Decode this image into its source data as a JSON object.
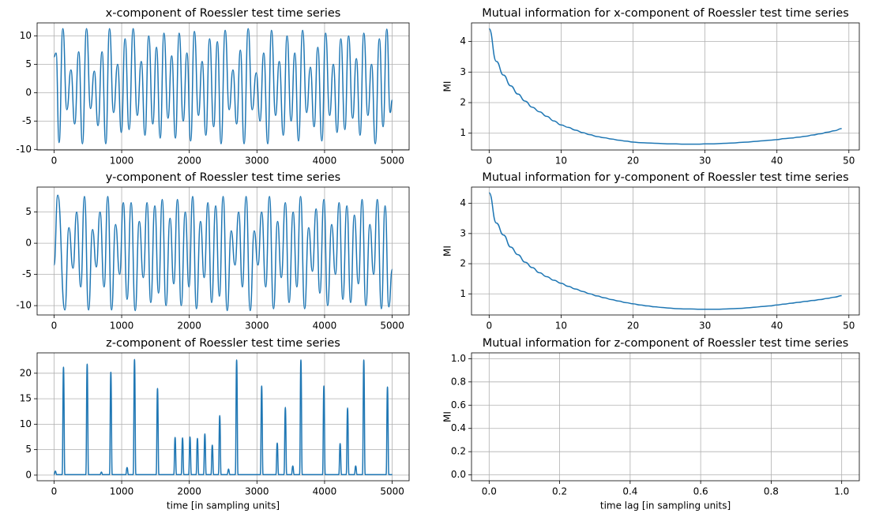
{
  "chart_data": [
    {
      "type": "line",
      "title": "x-component of Roessler test time series",
      "x": [
        0,
        30,
        75,
        130,
        190,
        250,
        305,
        365,
        420,
        480,
        540,
        595,
        650,
        710,
        765,
        820,
        880,
        940,
        995,
        1050,
        1110,
        1170,
        1230,
        1290,
        1345,
        1400,
        1460,
        1515,
        1570,
        1625,
        1685,
        1740,
        1795,
        1850,
        1910,
        1965,
        2020,
        2075,
        2135,
        2190,
        2245,
        2300,
        2360,
        2415,
        2470,
        2530,
        2590,
        2645,
        2700,
        2755,
        2810,
        2870,
        2930,
        2990,
        3045,
        3100,
        3160,
        3215,
        3275,
        3330,
        3390,
        3445,
        3505,
        3560,
        3615,
        3675,
        3735,
        3790,
        3845,
        3900,
        3960,
        4015,
        4075,
        4130,
        4185,
        4240,
        4300,
        4355,
        4415,
        4470,
        4525,
        4580,
        4640,
        4695,
        4750,
        4810,
        4865,
        4920,
        4970,
        5000
      ],
      "series": [
        {
          "color": "#1f77b4",
          "values": [
            6.3,
            7,
            -8.8,
            11.3,
            -3,
            4,
            -5.5,
            7.2,
            -9,
            11.3,
            -2.8,
            3.8,
            -5.8,
            7.2,
            -9,
            11.3,
            -3.5,
            5,
            -7,
            9.5,
            -6.5,
            11.3,
            -4,
            5.5,
            -7.5,
            10,
            -5.5,
            8,
            -8,
            10.5,
            -4.5,
            6.5,
            -8,
            10.5,
            -5,
            7,
            -8.5,
            10.8,
            -4,
            5.5,
            -7.5,
            9.5,
            -6,
            9,
            -9,
            11,
            -3,
            4,
            -5.5,
            7.5,
            -9,
            11.3,
            -3,
            3.5,
            -5,
            7,
            -9,
            11,
            -4,
            5.5,
            -7.5,
            10,
            -5,
            7,
            -8.5,
            11,
            -3.5,
            4.5,
            -6,
            8,
            -8.5,
            10.5,
            -4,
            5,
            -7,
            9.5,
            -6.5,
            10,
            -4.5,
            6,
            -7.5,
            10.5,
            -4,
            5,
            -9,
            9.5,
            -6,
            11.2,
            -3.5,
            -1.3
          ]
        }
      ],
      "xlim": [
        -250,
        5250
      ],
      "xticks": [
        0,
        1000,
        2000,
        3000,
        4000,
        5000
      ],
      "ylim": [
        -10.1,
        12.3
      ],
      "yticks": [
        -10,
        -5,
        0,
        5,
        10
      ],
      "grid": true
    },
    {
      "type": "line",
      "title": "Mutual information for x-component of Roessler test time series",
      "ylabel": "MI",
      "x": [
        0,
        1,
        2,
        3,
        4,
        5,
        6,
        7,
        8,
        9,
        10,
        11,
        12,
        13,
        14,
        15,
        16,
        17,
        18,
        19,
        20,
        21,
        22,
        23,
        24,
        25,
        26,
        27,
        28,
        29,
        30,
        31,
        32,
        33,
        34,
        35,
        36,
        37,
        38,
        39,
        40,
        41,
        42,
        43,
        44,
        45,
        46,
        47,
        48,
        49
      ],
      "series": [
        {
          "color": "#1f77b4",
          "values": [
            4.42,
            3.35,
            2.9,
            2.55,
            2.28,
            2.05,
            1.85,
            1.7,
            1.55,
            1.4,
            1.27,
            1.19,
            1.1,
            1.02,
            0.95,
            0.89,
            0.85,
            0.81,
            0.77,
            0.74,
            0.71,
            0.69,
            0.68,
            0.67,
            0.66,
            0.65,
            0.65,
            0.64,
            0.64,
            0.64,
            0.65,
            0.65,
            0.66,
            0.67,
            0.68,
            0.7,
            0.71,
            0.73,
            0.75,
            0.77,
            0.79,
            0.82,
            0.84,
            0.87,
            0.9,
            0.94,
            0.98,
            1.03,
            1.08,
            1.15
          ]
        }
      ],
      "xlim": [
        -2.45,
        51.45
      ],
      "xticks": [
        0,
        10,
        20,
        30,
        40,
        50
      ],
      "ylim": [
        0.45,
        4.61
      ],
      "yticks": [
        1,
        2,
        3,
        4
      ],
      "grid": true
    },
    {
      "type": "line",
      "title": "y-component of Roessler test time series",
      "x": [
        0,
        55,
        160,
        220,
        280,
        335,
        395,
        450,
        510,
        570,
        625,
        680,
        740,
        795,
        850,
        910,
        970,
        1025,
        1080,
        1140,
        1200,
        1260,
        1320,
        1375,
        1430,
        1490,
        1545,
        1600,
        1655,
        1715,
        1770,
        1825,
        1880,
        1940,
        1995,
        2050,
        2105,
        2165,
        2220,
        2275,
        2330,
        2390,
        2445,
        2500,
        2560,
        2620,
        2675,
        2730,
        2785,
        2840,
        2900,
        2960,
        3015,
        3070,
        3130,
        3185,
        3245,
        3305,
        3360,
        3420,
        3475,
        3535,
        3590,
        3645,
        3705,
        3765,
        3820,
        3875,
        3930,
        3990,
        4045,
        4105,
        4160,
        4215,
        4270,
        4330,
        4385,
        4440,
        4500,
        4555,
        4610,
        4670,
        4725,
        4780,
        4840,
        4895,
        4950,
        5000
      ],
      "series": [
        {
          "color": "#1f77b4",
          "values": [
            -3.5,
            7.7,
            -10.7,
            2.5,
            -4,
            5,
            -7,
            7.5,
            -10.7,
            2.2,
            -3.8,
            5,
            -7,
            7.5,
            -10.7,
            3,
            -5,
            6.5,
            -9,
            6.5,
            -10.8,
            3.5,
            -5.5,
            6.5,
            -9.5,
            6,
            -8,
            7,
            -10,
            4,
            -6.5,
            7,
            -10,
            5,
            -7,
            7.5,
            -10.5,
            3.5,
            -5.5,
            6.5,
            -9.5,
            6,
            -8.5,
            7.5,
            -10.8,
            2,
            -3.5,
            5,
            -7,
            7.5,
            -10.8,
            2,
            -3.5,
            5,
            -7,
            7.5,
            -10.5,
            3.5,
            -5.5,
            6.5,
            -9.5,
            5,
            -7,
            7.5,
            -10.5,
            2.5,
            -4.5,
            5.5,
            -8,
            7,
            -10,
            3,
            -5,
            6.5,
            -9,
            6,
            -9.5,
            4.5,
            -6.5,
            7,
            -10,
            3,
            -5,
            7,
            -10.5,
            6,
            -10.2,
            -4.2
          ]
        }
      ],
      "xlim": [
        -250,
        5250
      ],
      "xticks": [
        0,
        1000,
        2000,
        3000,
        4000,
        5000
      ],
      "ylim": [
        -11.5,
        9
      ],
      "yticks": [
        -10,
        -5,
        0,
        5
      ],
      "grid": true
    },
    {
      "type": "line",
      "title": "Mutual information for y-component of Roessler test time series",
      "ylabel": "MI",
      "x": [
        0,
        1,
        2,
        3,
        4,
        5,
        6,
        7,
        8,
        9,
        10,
        11,
        12,
        13,
        14,
        15,
        16,
        17,
        18,
        19,
        20,
        21,
        22,
        23,
        24,
        25,
        26,
        27,
        28,
        29,
        30,
        31,
        32,
        33,
        34,
        35,
        36,
        37,
        38,
        39,
        40,
        41,
        42,
        43,
        44,
        45,
        46,
        47,
        48,
        49
      ],
      "series": [
        {
          "color": "#1f77b4",
          "values": [
            4.35,
            3.35,
            2.95,
            2.55,
            2.3,
            2.05,
            1.87,
            1.7,
            1.57,
            1.45,
            1.35,
            1.25,
            1.16,
            1.08,
            1.0,
            0.93,
            0.87,
            0.81,
            0.76,
            0.71,
            0.67,
            0.63,
            0.6,
            0.57,
            0.55,
            0.53,
            0.51,
            0.5,
            0.5,
            0.49,
            0.49,
            0.49,
            0.49,
            0.5,
            0.51,
            0.52,
            0.54,
            0.56,
            0.58,
            0.6,
            0.63,
            0.66,
            0.69,
            0.72,
            0.75,
            0.78,
            0.81,
            0.85,
            0.89,
            0.94
          ]
        }
      ],
      "xlim": [
        -2.45,
        51.45
      ],
      "xticks": [
        0,
        10,
        20,
        30,
        40,
        50
      ],
      "ylim": [
        0.3,
        4.54
      ],
      "yticks": [
        1,
        2,
        3,
        4
      ],
      "grid": true
    },
    {
      "type": "line",
      "title": "z-component of Roessler test time series",
      "xlabel": "time [in sampling units]",
      "x": [
        0,
        20,
        40,
        120,
        140,
        160,
        470,
        490,
        510,
        680,
        700,
        720,
        820,
        840,
        860,
        1060,
        1080,
        1100,
        1170,
        1190,
        1210,
        1510,
        1530,
        1550,
        1770,
        1790,
        1810,
        1880,
        1900,
        1920,
        1990,
        2010,
        2030,
        2100,
        2120,
        2140,
        2210,
        2230,
        2250,
        2320,
        2340,
        2360,
        2430,
        2450,
        2470,
        2560,
        2580,
        2600,
        2680,
        2700,
        2720,
        3050,
        3070,
        3090,
        3280,
        3300,
        3320,
        3400,
        3420,
        3440,
        3510,
        3530,
        3550,
        3630,
        3650,
        3670,
        3970,
        3990,
        4010,
        4210,
        4230,
        4250,
        4320,
        4340,
        4360,
        4440,
        4460,
        4480,
        4560,
        4580,
        4600,
        4910,
        4930,
        4950,
        5000
      ],
      "series": [
        {
          "color": "#1f77b4",
          "values": [
            0.1,
            0.8,
            0.1,
            0.1,
            21.2,
            0.1,
            0.1,
            21.8,
            0.1,
            0.1,
            0.6,
            0.1,
            0.1,
            20.2,
            0.1,
            0.1,
            1.5,
            0.1,
            0.1,
            22.7,
            0.1,
            0.1,
            17,
            0.1,
            0.1,
            7.4,
            0.1,
            0.1,
            7.3,
            0.1,
            0.1,
            7.5,
            0.1,
            0.1,
            7.2,
            0.1,
            0.1,
            8.1,
            0.1,
            0.1,
            5.9,
            0.1,
            0.1,
            11.7,
            0.1,
            0.1,
            1.2,
            0.1,
            0.1,
            22.6,
            0.1,
            0.1,
            17.5,
            0.1,
            0.1,
            6.3,
            0.1,
            0.1,
            13.3,
            0.1,
            0.1,
            1.8,
            0.1,
            0.1,
            22.6,
            0.1,
            0.1,
            17.5,
            0.1,
            0.1,
            6.2,
            0.1,
            0.1,
            13.2,
            0.1,
            0.1,
            1.8,
            0.1,
            0.1,
            22.6,
            0.1,
            0.1,
            17.3,
            0.1,
            0.1
          ]
        }
      ],
      "xlim": [
        -250,
        5250
      ],
      "xticks": [
        0,
        1000,
        2000,
        3000,
        4000,
        5000
      ],
      "ylim": [
        -1.1,
        24
      ],
      "yticks": [
        0,
        5,
        10,
        15,
        20
      ],
      "grid": true
    },
    {
      "type": "line",
      "title": "Mutual information for z-component of Roessler test time series",
      "ylabel": "MI",
      "xlabel": "time lag [in sampling units]",
      "xlim": [
        -0.05,
        1.05
      ],
      "xticks": [
        {
          "value": 0,
          "label": "0.0"
        },
        0.2,
        0.4,
        0.6,
        0.8,
        {
          "value": 1,
          "label": "1.0"
        }
      ],
      "ylim": [
        -0.05,
        1.05
      ],
      "yticks": [
        {
          "value": 0,
          "label": "0.0"
        },
        0.2,
        0.4,
        0.6,
        0.8,
        {
          "value": 1,
          "label": "1.0"
        }
      ],
      "grid": true
    }
  ]
}
